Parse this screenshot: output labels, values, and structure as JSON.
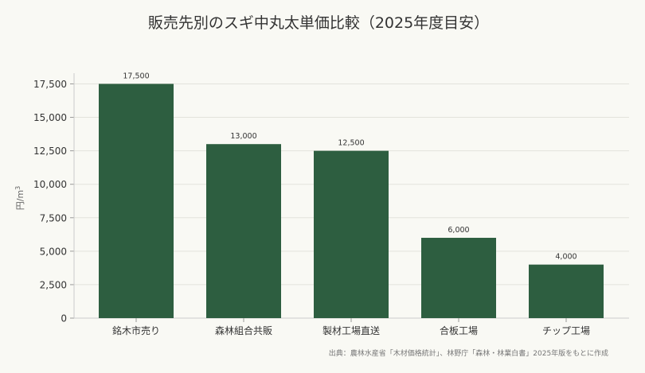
{
  "chart_data": {
    "type": "bar",
    "title": "販売先別のスギ中丸太単価比較（2025年度目安）",
    "ylabel": "円/m",
    "ylabel_superscript": "3",
    "xlabel": "",
    "categories": [
      "銘木市売り",
      "森林組合共販",
      "製材工場直送",
      "合板工場",
      "チップ工場"
    ],
    "values": [
      17500,
      13000,
      12500,
      6000,
      4000
    ],
    "value_labels": [
      "17,500",
      "13,000",
      "12,500",
      "6,000",
      "4,000"
    ],
    "ylim": [
      0,
      18300
    ],
    "yticks": [
      0,
      2500,
      5000,
      7500,
      10000,
      12500,
      15000,
      17500
    ],
    "ytick_labels": [
      "0",
      "2,500",
      "5,000",
      "7,500",
      "10,000",
      "12,500",
      "15,000",
      "17,500"
    ],
    "grid": true,
    "bar_color": "#2d5e40",
    "source": "出典：農林水産省「木材価格統計」、林野庁「森林・林業白書」2025年版をもとに作成"
  }
}
